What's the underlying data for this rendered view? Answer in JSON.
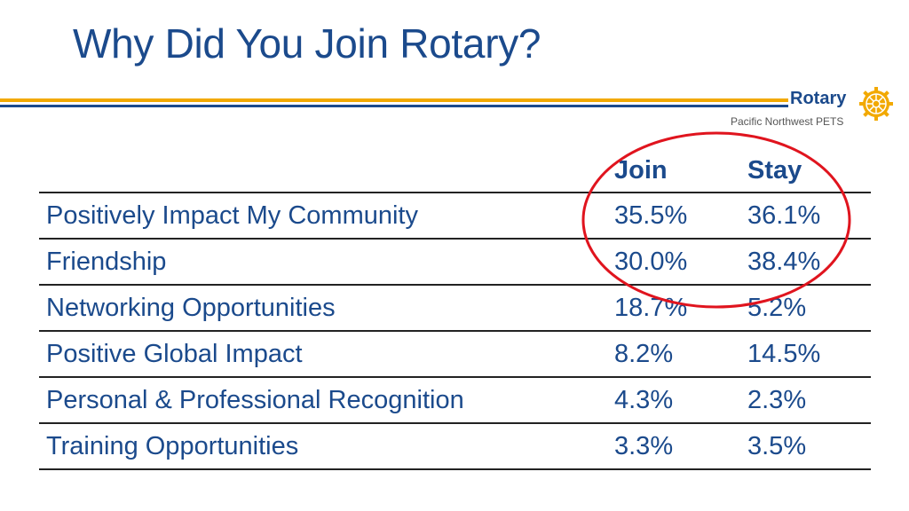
{
  "slide": {
    "title": "Why Did You Join Rotary?"
  },
  "logo": {
    "wordmark": "Rotary",
    "subtitle": "Pacific Northwest PETS",
    "icon": "rotary-wheel-icon"
  },
  "colors": {
    "brand_blue": "#1b4a8c",
    "brand_gold": "#f2a900",
    "circle_red": "#e0141e"
  },
  "table": {
    "headers": [
      "",
      "Join",
      "Stay"
    ],
    "rows": [
      [
        "Positively Impact My Community",
        "35.5%",
        "36.1%"
      ],
      [
        "Friendship",
        "30.0%",
        "38.4%"
      ],
      [
        "Networking Opportunities",
        "18.7%",
        "5.2%"
      ],
      [
        "Positive Global Impact",
        "8.2%",
        "14.5%"
      ],
      [
        "Personal & Professional Recognition",
        "4.3%",
        "2.3%"
      ],
      [
        "Training Opportunities",
        "3.3%",
        "3.5%"
      ]
    ]
  }
}
